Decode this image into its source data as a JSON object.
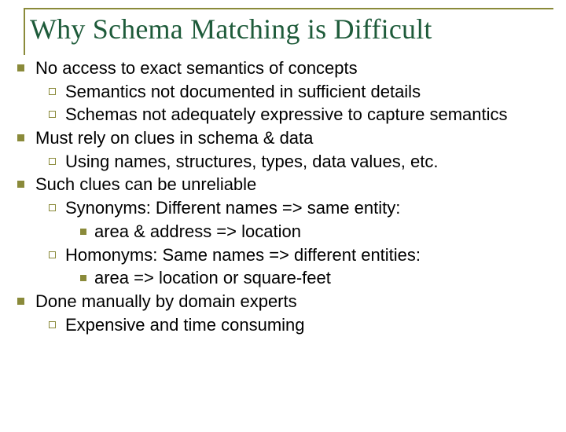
{
  "colors": {
    "title_text": "#1e5b3a",
    "accent_line": "#8a8a3a",
    "bullet_fill": "#8a8a3a",
    "body_text": "#000000",
    "background": "#ffffff"
  },
  "title": {
    "text": "Why Schema Matching is Difficult",
    "font_family": "Garamond",
    "font_size_pt": 28
  },
  "body": {
    "font_family": "Arial",
    "font_size_pt": 18,
    "items": [
      {
        "level": 1,
        "text": "No access to exact semantics of concepts"
      },
      {
        "level": 2,
        "text": "Semantics not documented in sufficient details"
      },
      {
        "level": 2,
        "text": "Schemas not adequately expressive to capture semantics"
      },
      {
        "level": 1,
        "text": "Must rely on clues in schema & data"
      },
      {
        "level": 2,
        "text": "Using names, structures, types, data values, etc."
      },
      {
        "level": 1,
        "text": "Such clues can be unreliable"
      },
      {
        "level": 2,
        "text": "Synonyms: Different names => same entity:"
      },
      {
        "level": 3,
        "text": "area & address => location"
      },
      {
        "level": 2,
        "text": "Homonyms: Same names => different entities:"
      },
      {
        "level": 3,
        "text": "area => location or square-feet"
      },
      {
        "level": 1,
        "text": "Done manually by domain experts"
      },
      {
        "level": 2,
        "text": "Expensive and time consuming"
      }
    ]
  }
}
